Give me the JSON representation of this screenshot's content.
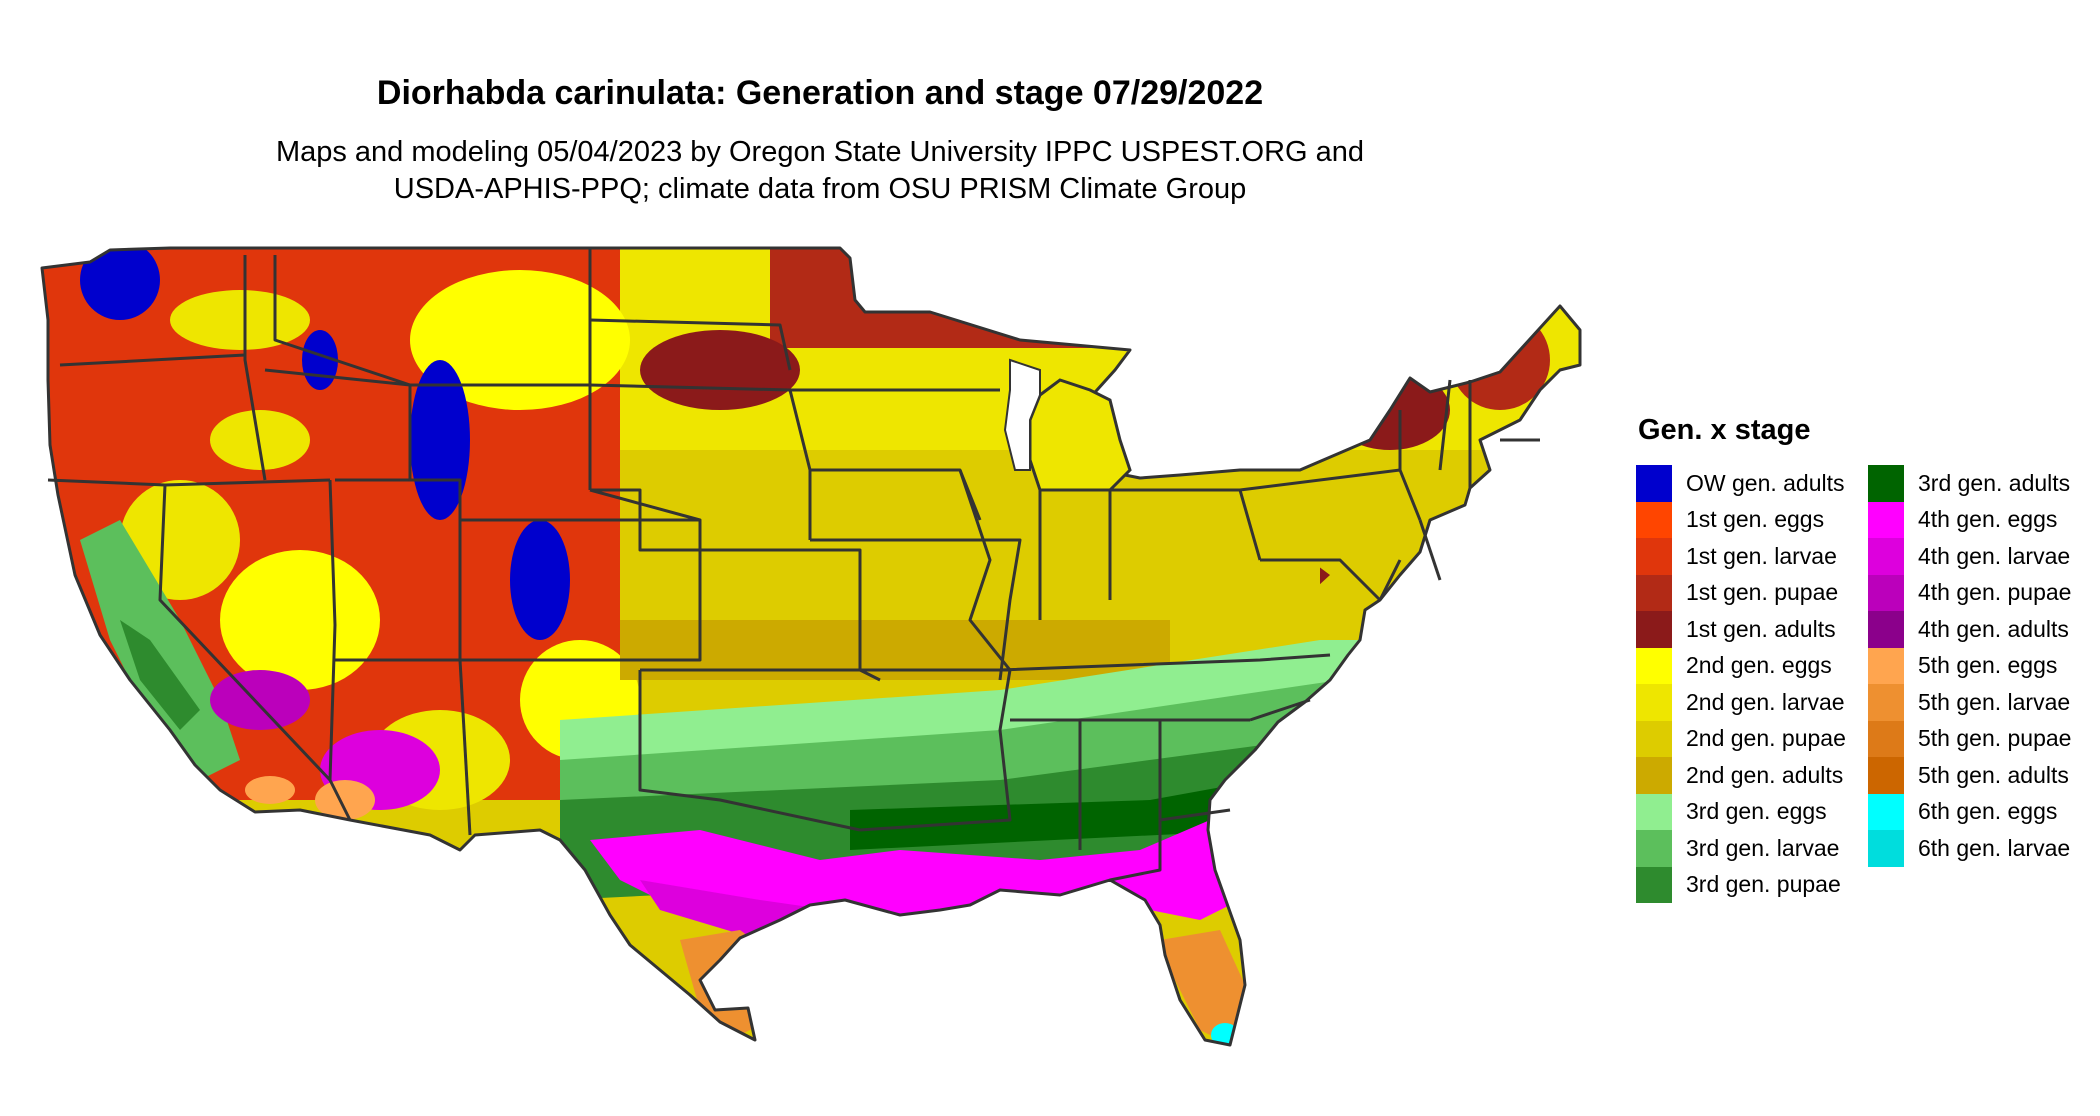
{
  "title": "Diorhabda carinulata: Generation and stage 07/29/2022",
  "subtitle_lines": [
    "Maps and modeling 05/04/2023 by Oregon State University IPPC USPEST.ORG and",
    "USDA-APHIS-PPQ; climate data from OSU PRISM Climate Group"
  ],
  "legend": {
    "title": "Gen. x stage",
    "items": [
      {
        "label": "OW gen. adults",
        "color": "#0000cd"
      },
      {
        "label": "1st gen. eggs",
        "color": "#ff4500"
      },
      {
        "label": "1st gen. larvae",
        "color": "#e0360c"
      },
      {
        "label": "1st gen. pupae",
        "color": "#b22a16"
      },
      {
        "label": "1st gen. adults",
        "color": "#8b1a1a"
      },
      {
        "label": "2nd gen. eggs",
        "color": "#ffff00"
      },
      {
        "label": "2nd gen. larvae",
        "color": "#eee600"
      },
      {
        "label": "2nd gen. pupae",
        "color": "#ddcc00"
      },
      {
        "label": "2nd gen. adults",
        "color": "#ccaa00"
      },
      {
        "label": "3rd gen. eggs",
        "color": "#90ee90"
      },
      {
        "label": "3rd gen. larvae",
        "color": "#5cbf5c"
      },
      {
        "label": "3rd gen. pupae",
        "color": "#2e8b2e"
      },
      {
        "label": "3rd gen. adults",
        "color": "#006400"
      },
      {
        "label": "4th gen. eggs",
        "color": "#ff00ff"
      },
      {
        "label": "4th gen. larvae",
        "color": "#dd00dd"
      },
      {
        "label": "4th gen. pupae",
        "color": "#bb00bb"
      },
      {
        "label": "4th gen. adults",
        "color": "#8b008b"
      },
      {
        "label": "5th gen. eggs",
        "color": "#ffa54f"
      },
      {
        "label": "5th gen. larvae",
        "color": "#ee9030"
      },
      {
        "label": "5th gen. pupae",
        "color": "#dd7a18"
      },
      {
        "label": "5th gen. adults",
        "color": "#cc6600"
      },
      {
        "label": "6th gen. eggs",
        "color": "#00ffff"
      },
      {
        "label": "6th gen. larvae",
        "color": "#00dddd"
      }
    ]
  },
  "colors": {
    "background": "#ffffff",
    "state_border": "#333333"
  }
}
